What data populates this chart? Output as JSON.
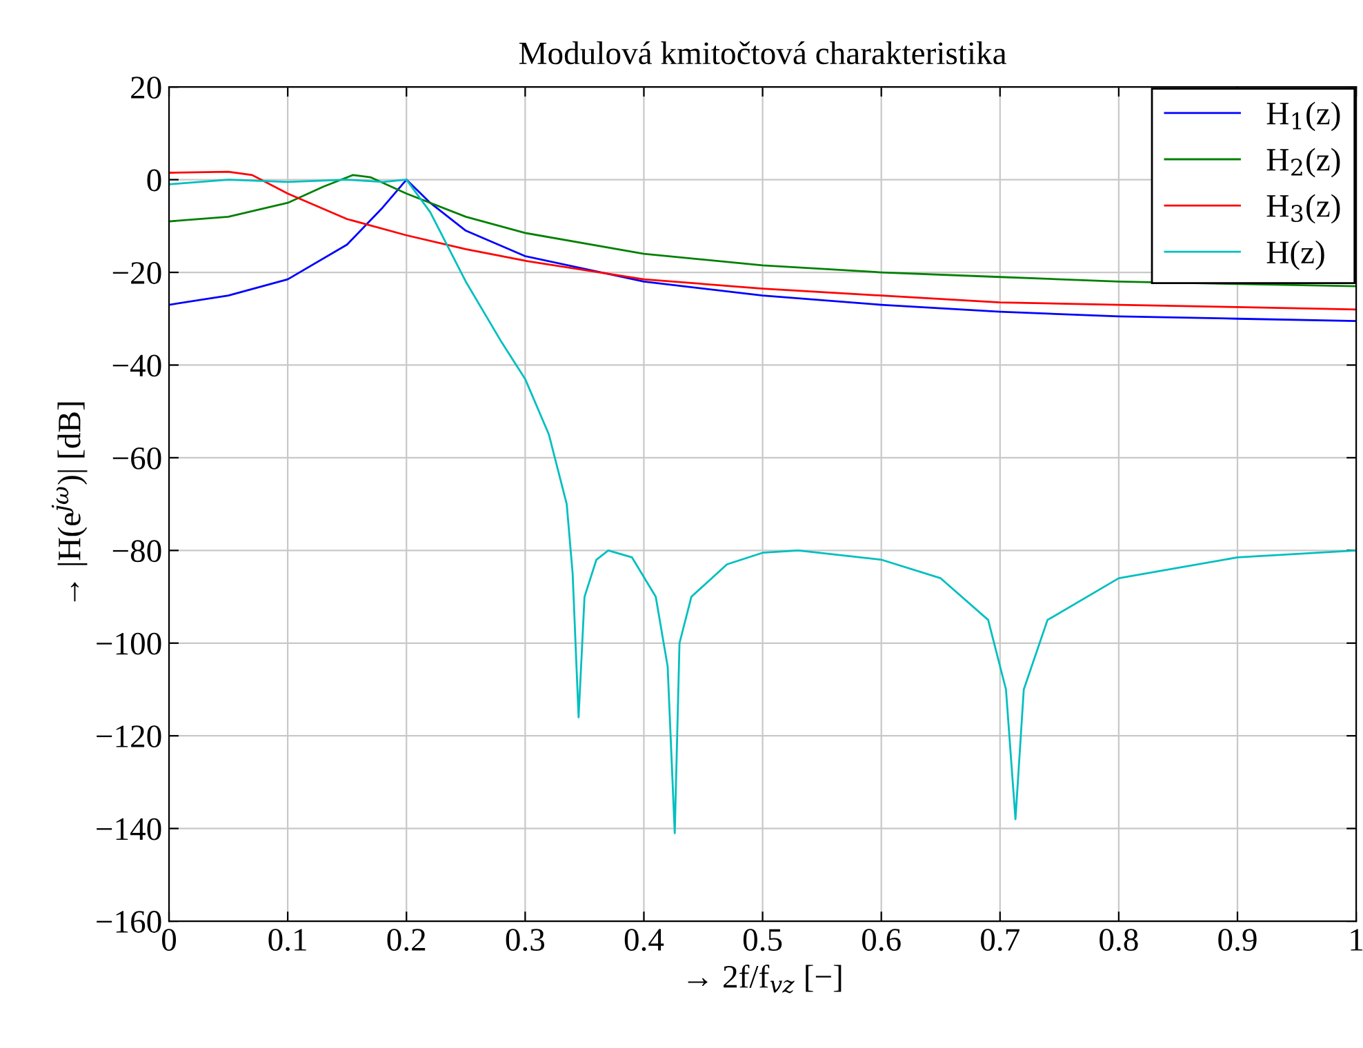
{
  "chart_data": {
    "type": "line",
    "title": "Modulová kmitočtová charakteristika",
    "xlabel": "→ 2f/f$_{vz}$ [−]",
    "ylabel": "→ |H(e$^{jω}$)| [dB]",
    "xlim": [
      0,
      1
    ],
    "xticks": [
      0,
      0.1,
      0.2,
      0.3,
      0.4,
      0.5,
      0.6,
      0.7,
      0.8,
      0.9,
      1
    ],
    "ylim": [
      -160,
      20
    ],
    "yticks": [
      -160,
      -140,
      -120,
      -100,
      -80,
      -60,
      -40,
      -20,
      0,
      20
    ],
    "grid": true,
    "legend": "top right",
    "line_style": "solid",
    "marker": "none",
    "series": [
      {
        "name": "H$_{1}$(z)",
        "color": "#0000ff",
        "x": [
          0,
          0.05,
          0.1,
          0.15,
          0.18,
          0.2,
          0.22,
          0.25,
          0.3,
          0.4,
          0.5,
          0.6,
          0.7,
          0.8,
          0.9,
          1
        ],
        "values": [
          -27,
          -25,
          -21.5,
          -14,
          -6,
          0,
          -5,
          -11,
          -16.5,
          -22,
          -25,
          -27,
          -28.5,
          -29.5,
          -30,
          -30.5
        ]
      },
      {
        "name": "H$_{2}$(z)",
        "color": "#008000",
        "x": [
          0,
          0.05,
          0.1,
          0.13,
          0.155,
          0.17,
          0.2,
          0.25,
          0.3,
          0.4,
          0.5,
          0.6,
          0.7,
          0.8,
          0.9,
          1
        ],
        "values": [
          -9,
          -8,
          -5,
          -1.5,
          1,
          0.5,
          -3,
          -8,
          -11.5,
          -16,
          -18.5,
          -20,
          -21,
          -22,
          -22.5,
          -23
        ]
      },
      {
        "name": "H$_{3}$(z)",
        "color": "#ff0000",
        "x": [
          0,
          0.05,
          0.07,
          0.1,
          0.15,
          0.2,
          0.25,
          0.3,
          0.4,
          0.5,
          0.6,
          0.7,
          0.8,
          0.9,
          1
        ],
        "values": [
          1.5,
          1.7,
          1,
          -3,
          -8.5,
          -12,
          -15,
          -17.5,
          -21.5,
          -23.5,
          -25,
          -26.5,
          -27,
          -27.5,
          -28
        ]
      },
      {
        "name": "H(z)",
        "color": "#00bfbf",
        "x": [
          0,
          0.05,
          0.1,
          0.15,
          0.18,
          0.2,
          0.22,
          0.25,
          0.28,
          0.3,
          0.32,
          0.335,
          0.34,
          0.345,
          0.35,
          0.36,
          0.37,
          0.39,
          0.41,
          0.42,
          0.426,
          0.43,
          0.44,
          0.47,
          0.5,
          0.53,
          0.6,
          0.65,
          0.69,
          0.705,
          0.713,
          0.72,
          0.74,
          0.8,
          0.9,
          1
        ],
        "values": [
          -1,
          0,
          -0.5,
          0,
          -0.5,
          0,
          -7,
          -22,
          -35,
          -43,
          -55,
          -70,
          -85,
          -116,
          -90,
          -82,
          -80,
          -81.5,
          -90,
          -105,
          -141,
          -100,
          -90,
          -83,
          -80.5,
          -80,
          -82,
          -86,
          -95,
          -110,
          -138,
          -110,
          -95,
          -86,
          -81.5,
          -80
        ]
      }
    ]
  }
}
